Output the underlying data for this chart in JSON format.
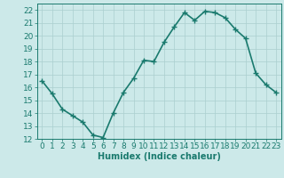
{
  "x": [
    0,
    1,
    2,
    3,
    4,
    5,
    6,
    7,
    8,
    9,
    10,
    11,
    12,
    13,
    14,
    15,
    16,
    17,
    18,
    19,
    20,
    21,
    22,
    23
  ],
  "y": [
    16.5,
    15.5,
    14.3,
    13.8,
    13.3,
    12.3,
    12.1,
    14.0,
    15.6,
    16.7,
    18.1,
    18.0,
    19.5,
    20.7,
    21.8,
    21.2,
    21.9,
    21.8,
    21.4,
    20.5,
    19.8,
    17.1,
    16.2,
    15.6
  ],
  "line_color": "#1a7a6e",
  "marker": "+",
  "marker_size": 4,
  "bg_color": "#cce9e9",
  "grid_color": "#aacfcf",
  "xlabel": "Humidex (Indice chaleur)",
  "ylabel_ticks": [
    12,
    13,
    14,
    15,
    16,
    17,
    18,
    19,
    20,
    21,
    22
  ],
  "xlim": [
    -0.5,
    23.5
  ],
  "ylim": [
    12,
    22.5
  ],
  "xlabel_fontsize": 7,
  "tick_fontsize": 6.5,
  "line_width": 1.2,
  "marker_linewidth": 1.0
}
